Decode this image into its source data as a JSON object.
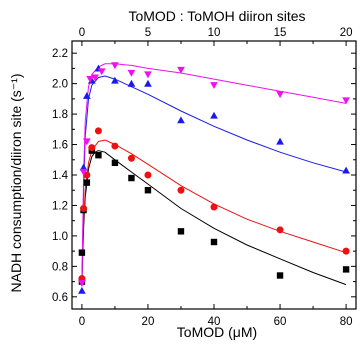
{
  "chart_data": {
    "type": "scatter",
    "title": "",
    "xlabel": "ToMOD (μM)",
    "ylabel": "NADH consumption/diiron site (s⁻¹)",
    "x2label": "ToMOD : ToMOH diiron sites",
    "xlim": [
      -3,
      83
    ],
    "ylim": [
      0.52,
      2.28
    ],
    "x2lim": [
      -0.75,
      20.75
    ],
    "xticks": [
      0,
      20,
      40,
      60,
      80
    ],
    "xtick_labels": [
      "0",
      "20",
      "40",
      "60",
      "80"
    ],
    "yticks": [
      0.6,
      0.8,
      1.0,
      1.2,
      1.4,
      1.6,
      1.8,
      2.0,
      2.2
    ],
    "ytick_labels": [
      "0.6",
      "0.8",
      "1.0",
      "1.2",
      "1.4",
      "1.6",
      "1.8",
      "2.0",
      "2.2"
    ],
    "x2ticks": [
      0,
      5,
      10,
      15,
      20
    ],
    "x2tick_labels": [
      "0",
      "5",
      "10",
      "15",
      "20"
    ],
    "grid": false,
    "series": [
      {
        "marker": "square",
        "color": "#000000",
        "points": [
          [
            0,
            0.89
          ],
          [
            0,
            0.7
          ],
          [
            0.5,
            1.17
          ],
          [
            1.5,
            1.35
          ],
          [
            3,
            1.56
          ],
          [
            5,
            1.53
          ],
          [
            10,
            1.48
          ],
          [
            15,
            1.38
          ],
          [
            20,
            1.3
          ],
          [
            30,
            1.03
          ],
          [
            40,
            0.96
          ],
          [
            60,
            0.74
          ],
          [
            80,
            0.78
          ]
        ],
        "fit": [
          [
            0,
            0.7
          ],
          [
            0.5,
            1.05
          ],
          [
            1,
            1.25
          ],
          [
            2,
            1.44
          ],
          [
            3,
            1.52
          ],
          [
            4,
            1.55
          ],
          [
            5,
            1.56
          ],
          [
            7,
            1.55
          ],
          [
            10,
            1.5
          ],
          [
            15,
            1.42
          ],
          [
            20,
            1.34
          ],
          [
            30,
            1.18
          ],
          [
            40,
            1.05
          ],
          [
            50,
            0.94
          ],
          [
            60,
            0.85
          ],
          [
            70,
            0.76
          ],
          [
            80,
            0.68
          ]
        ]
      },
      {
        "marker": "circle",
        "color": "#ee1111",
        "points": [
          [
            0,
            0.72
          ],
          [
            0.5,
            1.18
          ],
          [
            1.5,
            1.4
          ],
          [
            3,
            1.58
          ],
          [
            5,
            1.69
          ],
          [
            10,
            1.59
          ],
          [
            15,
            1.51
          ],
          [
            20,
            1.4
          ],
          [
            30,
            1.3
          ],
          [
            40,
            1.19
          ],
          [
            60,
            1.04
          ],
          [
            80,
            0.9
          ]
        ],
        "fit": [
          [
            0,
            0.72
          ],
          [
            0.5,
            1.1
          ],
          [
            1,
            1.3
          ],
          [
            2,
            1.48
          ],
          [
            3,
            1.56
          ],
          [
            5,
            1.62
          ],
          [
            7,
            1.63
          ],
          [
            10,
            1.6
          ],
          [
            15,
            1.54
          ],
          [
            20,
            1.47
          ],
          [
            30,
            1.33
          ],
          [
            40,
            1.21
          ],
          [
            50,
            1.11
          ],
          [
            60,
            1.03
          ],
          [
            70,
            0.96
          ],
          [
            80,
            0.89
          ]
        ]
      },
      {
        "marker": "triangle-up",
        "color": "#1a1aee",
        "points": [
          [
            0,
            0.64
          ],
          [
            0.5,
            1.45
          ],
          [
            1.5,
            1.92
          ],
          [
            3,
            2.02
          ],
          [
            5,
            2.1
          ],
          [
            10,
            2.02
          ],
          [
            15,
            2.0
          ],
          [
            20,
            2.0
          ],
          [
            30,
            1.76
          ],
          [
            40,
            1.79
          ],
          [
            60,
            1.62
          ],
          [
            80,
            1.43
          ]
        ],
        "fit": [
          [
            0,
            0.67
          ],
          [
            0.5,
            1.3
          ],
          [
            1,
            1.65
          ],
          [
            2,
            1.9
          ],
          [
            3,
            1.99
          ],
          [
            5,
            2.04
          ],
          [
            7,
            2.05
          ],
          [
            10,
            2.03
          ],
          [
            15,
            1.98
          ],
          [
            20,
            1.93
          ],
          [
            30,
            1.82
          ],
          [
            40,
            1.72
          ],
          [
            50,
            1.63
          ],
          [
            60,
            1.55
          ],
          [
            70,
            1.48
          ],
          [
            80,
            1.42
          ]
        ]
      },
      {
        "marker": "triangle-down",
        "color": "#ee11ee",
        "points": [
          [
            0,
            0.69
          ],
          [
            0.5,
            1.42
          ],
          [
            1.5,
            1.62
          ],
          [
            2.5,
            2.03
          ],
          [
            4,
            2.04
          ],
          [
            6,
            2.08
          ],
          [
            10,
            2.12
          ],
          [
            15,
            2.07
          ],
          [
            20,
            2.06
          ],
          [
            30,
            2.09
          ],
          [
            40,
            1.99
          ],
          [
            60,
            1.93
          ],
          [
            80,
            1.89
          ]
        ],
        "fit": [
          [
            0,
            0.69
          ],
          [
            0.5,
            1.4
          ],
          [
            1,
            1.75
          ],
          [
            2,
            1.98
          ],
          [
            3,
            2.06
          ],
          [
            5,
            2.11
          ],
          [
            7,
            2.13
          ],
          [
            10,
            2.13
          ],
          [
            15,
            2.12
          ],
          [
            20,
            2.1
          ],
          [
            30,
            2.07
          ],
          [
            40,
            2.03
          ],
          [
            50,
            1.99
          ],
          [
            60,
            1.95
          ],
          [
            70,
            1.91
          ],
          [
            80,
            1.87
          ]
        ]
      }
    ]
  }
}
